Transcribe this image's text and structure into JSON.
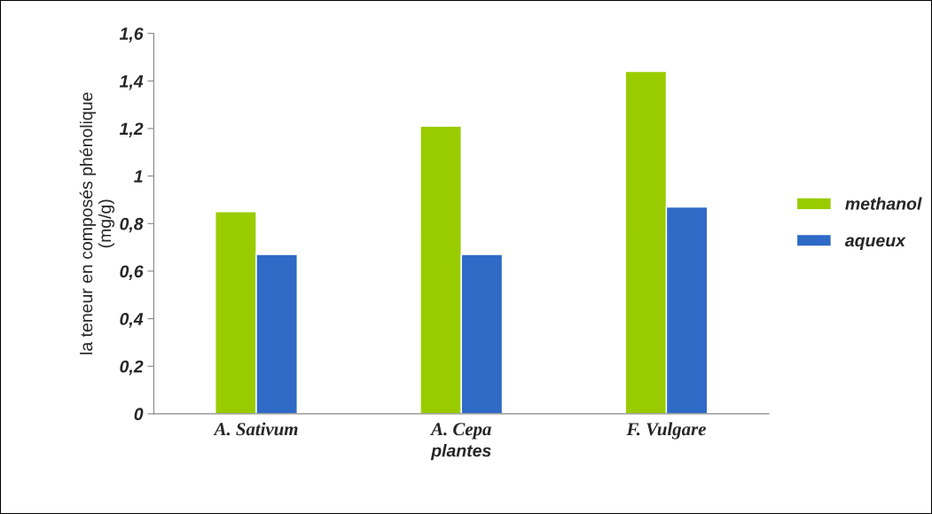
{
  "chart_data": {
    "type": "bar",
    "xlabel": "plantes",
    "ylabel": "la teneur en composés phénolique\n(mg/g)",
    "categories": [
      "A. Sativum",
      "A. Cepa",
      "F. Vulgare"
    ],
    "series": [
      {
        "name": "methanol",
        "color": "#99cc00",
        "values": [
          0.85,
          1.21,
          1.44
        ]
      },
      {
        "name": "aqueux",
        "color": "#2e6ac6",
        "values": [
          0.67,
          0.67,
          0.87
        ]
      }
    ],
    "ylim": [
      0,
      1.6
    ],
    "yticks": [
      {
        "value": 0,
        "label": "0"
      },
      {
        "value": 0.2,
        "label": "0,2"
      },
      {
        "value": 0.4,
        "label": "0,4"
      },
      {
        "value": 0.6,
        "label": "0,6"
      },
      {
        "value": 0.8,
        "label": "0,8"
      },
      {
        "value": 1,
        "label": "1"
      },
      {
        "value": 1.2,
        "label": "1,2"
      },
      {
        "value": 1.4,
        "label": "1,4"
      },
      {
        "value": 1.6,
        "label": "1,6"
      }
    ],
    "grid": false,
    "legend": "right"
  }
}
